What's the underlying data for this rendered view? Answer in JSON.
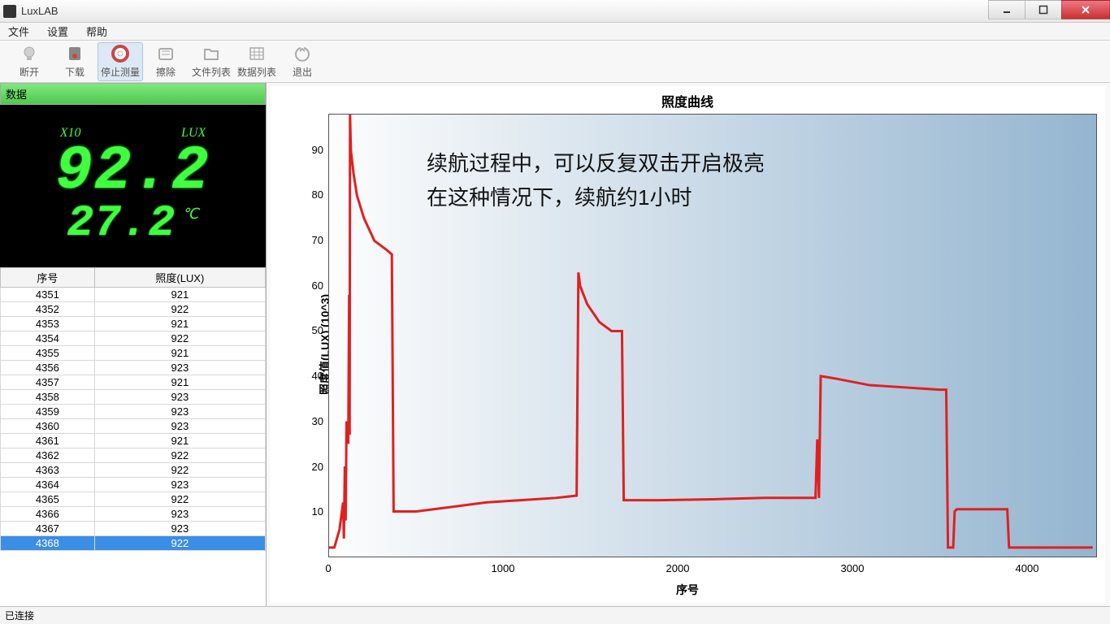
{
  "window": {
    "title": "LuxLAB"
  },
  "menu": {
    "file": "文件",
    "settings": "设置",
    "help": "帮助"
  },
  "toolbar": {
    "disconnect": "断开",
    "download": "下载",
    "stop_measure": "停止测量",
    "erase": "擦除",
    "file_list": "文件列表",
    "data_list": "数据列表",
    "exit": "退出"
  },
  "panel": {
    "data_header": "数据"
  },
  "lcd": {
    "scale_label": "X10",
    "unit_label": "LUX",
    "main_value": "92.2",
    "temp_value": "27.2",
    "temp_unit": "℃"
  },
  "table": {
    "col_index": "序号",
    "col_lux": "照度(LUX)",
    "rows": [
      {
        "idx": "4351",
        "lux": "921"
      },
      {
        "idx": "4352",
        "lux": "922"
      },
      {
        "idx": "4353",
        "lux": "921"
      },
      {
        "idx": "4354",
        "lux": "922"
      },
      {
        "idx": "4355",
        "lux": "921"
      },
      {
        "idx": "4356",
        "lux": "923"
      },
      {
        "idx": "4357",
        "lux": "921"
      },
      {
        "idx": "4358",
        "lux": "923"
      },
      {
        "idx": "4359",
        "lux": "923"
      },
      {
        "idx": "4360",
        "lux": "923"
      },
      {
        "idx": "4361",
        "lux": "921"
      },
      {
        "idx": "4362",
        "lux": "922"
      },
      {
        "idx": "4363",
        "lux": "922"
      },
      {
        "idx": "4364",
        "lux": "923"
      },
      {
        "idx": "4365",
        "lux": "922"
      },
      {
        "idx": "4366",
        "lux": "923"
      },
      {
        "idx": "4367",
        "lux": "923"
      },
      {
        "idx": "4368",
        "lux": "922"
      }
    ],
    "selected_idx": "4368"
  },
  "chart": {
    "type": "line",
    "title": "照度曲线",
    "y_label": "照度值(LUX) (10^3)",
    "x_label": "序号",
    "overlay_line1": "续航过程中，可以反复双击开启极亮",
    "overlay_line2": "在这种情况下，续航约1小时",
    "line_color": "#e02020",
    "line_width": 1.8,
    "bg_gradient_from": "#fdfdfd",
    "bg_gradient_to": "#94b5d0",
    "border_color": "#555555",
    "xlim": [
      0,
      4400
    ],
    "ylim": [
      0,
      98
    ],
    "xticks": [
      0,
      1000,
      2000,
      3000,
      4000
    ],
    "yticks": [
      10,
      20,
      30,
      40,
      50,
      60,
      70,
      80,
      90
    ],
    "series": [
      [
        0,
        2
      ],
      [
        30,
        2
      ],
      [
        60,
        6
      ],
      [
        80,
        12
      ],
      [
        85,
        4
      ],
      [
        90,
        20
      ],
      [
        95,
        8
      ],
      [
        100,
        30
      ],
      [
        110,
        25
      ],
      [
        115,
        58
      ],
      [
        118,
        27
      ],
      [
        120,
        98
      ],
      [
        125,
        90
      ],
      [
        140,
        85
      ],
      [
        160,
        80
      ],
      [
        200,
        75
      ],
      [
        260,
        70
      ],
      [
        330,
        68
      ],
      [
        360,
        67
      ],
      [
        370,
        10
      ],
      [
        500,
        10
      ],
      [
        700,
        11
      ],
      [
        900,
        12
      ],
      [
        1100,
        12.5
      ],
      [
        1300,
        13
      ],
      [
        1420,
        13.5
      ],
      [
        1430,
        63
      ],
      [
        1440,
        60
      ],
      [
        1480,
        56
      ],
      [
        1550,
        52
      ],
      [
        1620,
        50
      ],
      [
        1680,
        50
      ],
      [
        1690,
        12.5
      ],
      [
        1900,
        12.5
      ],
      [
        2200,
        12.7
      ],
      [
        2500,
        13
      ],
      [
        2790,
        13
      ],
      [
        2800,
        26
      ],
      [
        2810,
        13
      ],
      [
        2820,
        40
      ],
      [
        2900,
        39.5
      ],
      [
        3100,
        38
      ],
      [
        3300,
        37.5
      ],
      [
        3500,
        37
      ],
      [
        3540,
        37
      ],
      [
        3550,
        2
      ],
      [
        3560,
        2
      ],
      [
        3570,
        2
      ],
      [
        3580,
        2
      ],
      [
        3588,
        10
      ],
      [
        3600,
        10.5
      ],
      [
        3750,
        10.5
      ],
      [
        3890,
        10.5
      ],
      [
        3900,
        2
      ],
      [
        4100,
        2
      ],
      [
        4300,
        2
      ],
      [
        4380,
        2
      ]
    ]
  },
  "status": {
    "text": "已连接"
  },
  "colors": {
    "lcd_bg": "#000000",
    "lcd_fg": "#3fff3f",
    "panel_header_bg": "#5fd85f",
    "selected_row_bg": "#3a8ee6"
  }
}
